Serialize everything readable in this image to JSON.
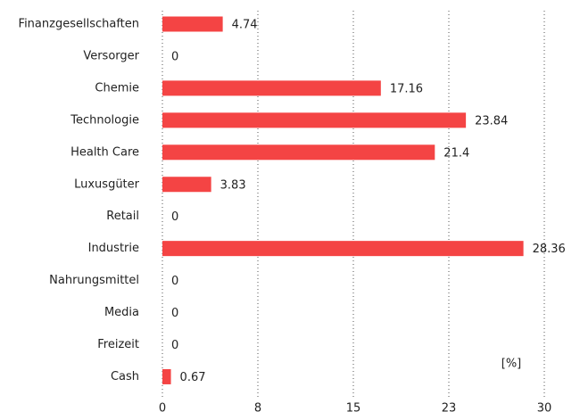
{
  "chart_data": {
    "type": "barh",
    "categories": [
      "Finanzgesellschaften",
      "Versorger",
      "Chemie",
      "Technologie",
      "Health Care",
      "Luxusgüter",
      "Retail",
      "Industrie",
      "Nahrungsmittel",
      "Media",
      "Freizeit",
      "Cash"
    ],
    "values": [
      4.74,
      0,
      17.16,
      23.84,
      21.4,
      3.83,
      0,
      28.36,
      0,
      0,
      0,
      0.67
    ],
    "color": "#f44444",
    "xlim": [
      0,
      30
    ],
    "xticks": [
      0,
      {
        "value": 7.5,
        "label": "8"
      },
      15,
      {
        "value": 22.5,
        "label": "23"
      },
      30
    ],
    "grid": true,
    "annotation": "[%]"
  }
}
